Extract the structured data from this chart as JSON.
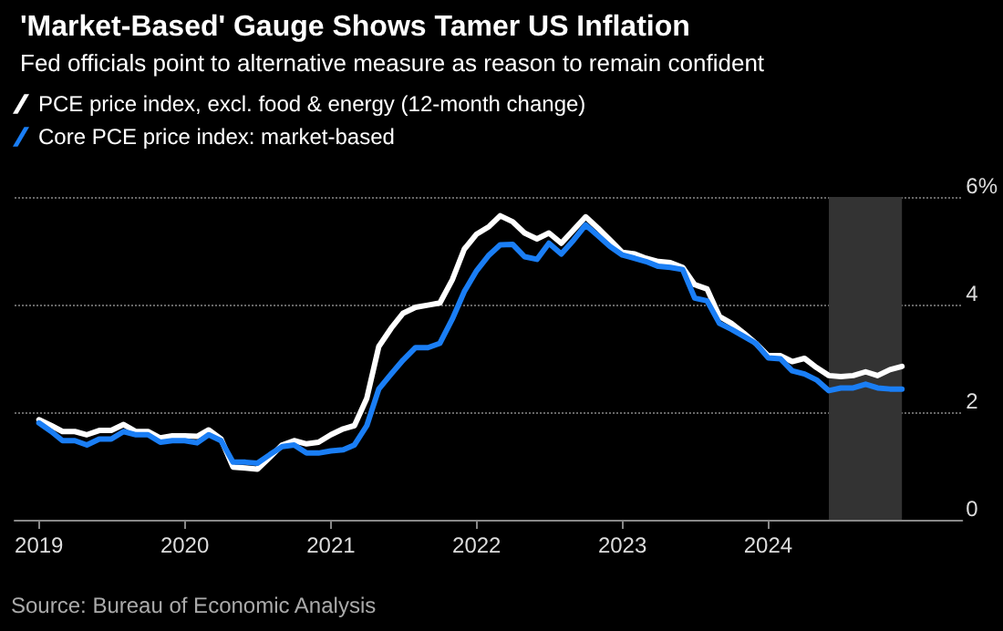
{
  "chart_data": {
    "type": "line",
    "title": "'Market-Based' Gauge Shows Tamer US Inflation",
    "subtitle": "Fed officials point to alternative measure as reason to remain confident",
    "x": [
      "2019-01",
      "2019-02",
      "2019-03",
      "2019-04",
      "2019-05",
      "2019-06",
      "2019-07",
      "2019-08",
      "2019-09",
      "2019-10",
      "2019-11",
      "2019-12",
      "2020-01",
      "2020-02",
      "2020-03",
      "2020-04",
      "2020-05",
      "2020-06",
      "2020-07",
      "2020-08",
      "2020-09",
      "2020-10",
      "2020-11",
      "2020-12",
      "2021-01",
      "2021-02",
      "2021-03",
      "2021-04",
      "2021-05",
      "2021-06",
      "2021-07",
      "2021-08",
      "2021-09",
      "2021-10",
      "2021-11",
      "2021-12",
      "2022-01",
      "2022-02",
      "2022-03",
      "2022-04",
      "2022-05",
      "2022-06",
      "2022-07",
      "2022-08",
      "2022-09",
      "2022-10",
      "2022-11",
      "2022-12",
      "2023-01",
      "2023-02",
      "2023-03",
      "2023-04",
      "2023-05",
      "2023-06",
      "2023-07",
      "2023-08",
      "2023-09",
      "2023-10",
      "2023-11",
      "2023-12",
      "2024-01",
      "2024-02",
      "2024-03",
      "2024-04",
      "2024-05",
      "2024-06",
      "2024-07",
      "2024-08",
      "2024-09",
      "2024-10",
      "2024-11",
      "2024-12"
    ],
    "series": [
      {
        "name": "PCE price index, excl. food & energy (12-month change)",
        "color": "#ffffff",
        "values": [
          1.86,
          1.75,
          1.64,
          1.64,
          1.58,
          1.66,
          1.66,
          1.77,
          1.64,
          1.64,
          1.52,
          1.56,
          1.56,
          1.55,
          1.67,
          1.5,
          0.98,
          0.96,
          0.94,
          1.16,
          1.39,
          1.47,
          1.41,
          1.44,
          1.58,
          1.69,
          1.75,
          2.26,
          3.22,
          3.56,
          3.84,
          3.95,
          3.99,
          4.03,
          4.46,
          5.03,
          5.31,
          5.45,
          5.65,
          5.54,
          5.33,
          5.22,
          5.33,
          5.14,
          5.39,
          5.63,
          5.42,
          5.2,
          4.97,
          4.94,
          4.86,
          4.8,
          4.78,
          4.69,
          4.37,
          4.29,
          3.78,
          3.65,
          3.47,
          3.28,
          3.05,
          3.05,
          2.94,
          3.0,
          2.83,
          2.68,
          2.66,
          2.68,
          2.75,
          2.68,
          2.79,
          2.85
        ]
      },
      {
        "name": "Core PCE price index: market-based",
        "color": "#1a7ef5",
        "values": [
          1.8,
          1.64,
          1.47,
          1.47,
          1.39,
          1.5,
          1.5,
          1.64,
          1.58,
          1.58,
          1.44,
          1.47,
          1.47,
          1.43,
          1.58,
          1.47,
          1.07,
          1.07,
          1.05,
          1.21,
          1.36,
          1.39,
          1.24,
          1.24,
          1.28,
          1.3,
          1.39,
          1.75,
          2.43,
          2.71,
          2.97,
          3.2,
          3.2,
          3.28,
          3.73,
          4.24,
          4.63,
          4.92,
          5.11,
          5.12,
          4.89,
          4.84,
          5.14,
          4.94,
          5.2,
          5.48,
          5.28,
          5.08,
          4.92,
          4.86,
          4.8,
          4.71,
          4.69,
          4.65,
          4.12,
          4.07,
          3.65,
          3.54,
          3.41,
          3.28,
          3.01,
          2.99,
          2.77,
          2.71,
          2.6,
          2.4,
          2.45,
          2.45,
          2.52,
          2.45,
          2.43,
          2.43
        ]
      }
    ],
    "xlim": [
      "2018-11",
      "2025-05"
    ],
    "xticks": [
      "2019",
      "2020",
      "2021",
      "2022",
      "2023",
      "2024"
    ],
    "ylim": [
      0,
      6
    ],
    "yticks": [
      0,
      2,
      4,
      {
        "value": 6,
        "label": "6%"
      }
    ],
    "bands": [
      {
        "axis": "x",
        "from": "2024-06",
        "to": "2024-12",
        "color": "#333333"
      }
    ],
    "grid": "y",
    "legend": "top left",
    "marker": "none",
    "line_style": "solid",
    "annotations": [
      "Source: Bureau of Economic Analysis"
    ]
  }
}
